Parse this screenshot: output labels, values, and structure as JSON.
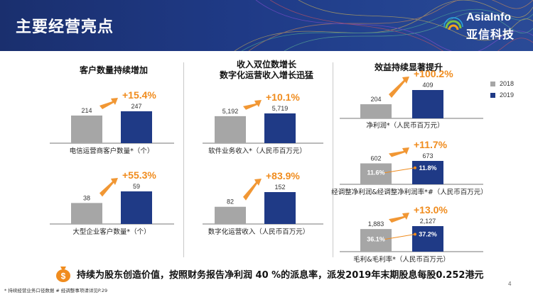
{
  "header": {
    "title": "主要经营亮点",
    "logo_en": "AsiaInfo",
    "logo_cn": "亚信科技"
  },
  "sections": [
    {
      "title": "客户数量持续增加"
    },
    {
      "title": "收入双位数增长\n数字化运营收入增长迅猛"
    },
    {
      "title": "效益持续显著提升"
    }
  ],
  "legend": [
    {
      "label": "2018",
      "color": "#a6a6a6"
    },
    {
      "label": "2019",
      "color": "#1f3a86"
    }
  ],
  "chart_data": [
    {
      "type": "bar",
      "categories": [
        "2018",
        "2019"
      ],
      "values": [
        214,
        247
      ],
      "value_labels": [
        "214",
        "247"
      ],
      "growth": "+15.4%",
      "xlabel": "电信运营商客户数量*（个）"
    },
    {
      "type": "bar",
      "categories": [
        "2018",
        "2019"
      ],
      "values": [
        38,
        59
      ],
      "value_labels": [
        "38",
        "59"
      ],
      "growth": "+55.3%",
      "xlabel": "大型企业客户数量*（个）"
    },
    {
      "type": "bar",
      "categories": [
        "2018",
        "2019"
      ],
      "values": [
        5192,
        5719
      ],
      "value_labels": [
        "5,192",
        "5,719"
      ],
      "growth": "+10.1%",
      "xlabel": "软件业务收入*（人民币百万元）"
    },
    {
      "type": "bar",
      "categories": [
        "2018",
        "2019"
      ],
      "values": [
        82,
        152
      ],
      "value_labels": [
        "82",
        "152"
      ],
      "growth": "+83.9%",
      "xlabel": "数字化运营收入（人民币百万元）"
    },
    {
      "type": "bar",
      "categories": [
        "2018",
        "2019"
      ],
      "values": [
        204,
        409
      ],
      "value_labels": [
        "204",
        "409"
      ],
      "growth": "+100.2%",
      "xlabel": "净利润*（人民币百万元）"
    },
    {
      "type": "bar",
      "categories": [
        "2018",
        "2019"
      ],
      "values": [
        602,
        673
      ],
      "value_labels": [
        "602",
        "673"
      ],
      "growth": "+11.7%",
      "xlabel": "经调整净利润&经调整净利润率*#（人民币百万元）",
      "rate_labels": [
        "11.6%",
        "11.8%"
      ]
    },
    {
      "type": "bar",
      "categories": [
        "2018",
        "2019"
      ],
      "values": [
        1883,
        2127
      ],
      "value_labels": [
        "1,883",
        "2,127"
      ],
      "growth": "+13.0%",
      "xlabel": "毛利&毛利率*（人民币百万元）",
      "rate_labels": [
        "36.1%",
        "37.2%"
      ]
    }
  ],
  "message": "持续为股东创造价值，按照财务报告净利润 40 %的派息率，派发2019年末期股息每股0.252港元",
  "footnote": "*  持续经营业务口径数据   #  经调整事项请详见P.29",
  "page_number": "4",
  "colors": {
    "bar_2018": "#a6a6a6",
    "bar_2019": "#1f3a86",
    "growth": "#f08c1e",
    "header": "#1f3a86"
  }
}
